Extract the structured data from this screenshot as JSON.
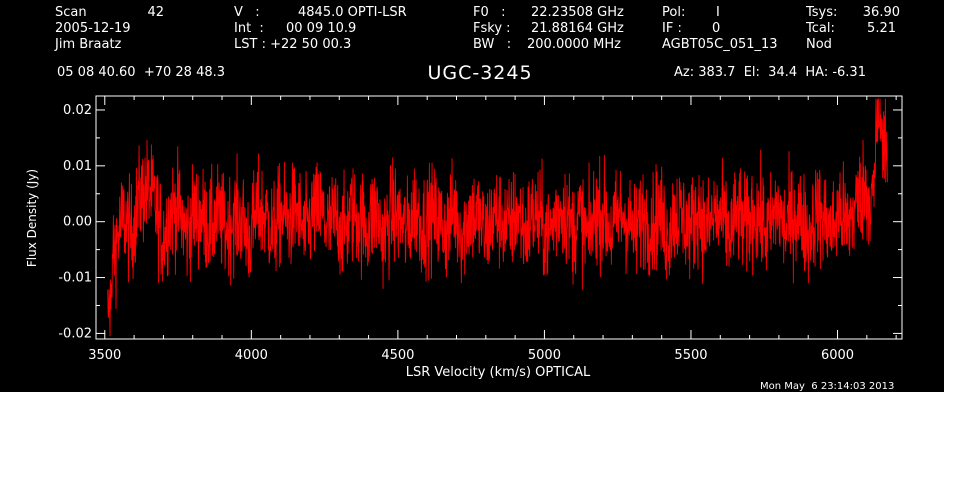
{
  "header": {
    "scan_label": "Scan",
    "scan_value": "42",
    "date": "2005-12-19",
    "observer": "Jim Braatz",
    "v_label": "V   :",
    "v_value": "4845.0 OPTI-LSR",
    "int_label": "Int  :",
    "int_value": "00 09 10.9",
    "lst_label": "LST : +22 50 00.3",
    "f0_label": "F0   :",
    "f0_value": "22.23508 GHz",
    "fsky_label": "Fsky :",
    "fsky_value": "21.88164 GHz",
    "bw_label": "BW   :",
    "bw_value": "200.0000 MHz",
    "pol_label": "Pol:",
    "pol_value": "I",
    "if_label": "IF :",
    "if_value": "0",
    "project": "AGBT05C_051_13",
    "tsys_label": "Tsys:",
    "tsys_value": "36.90",
    "tcal_label": "Tcal:",
    "tcal_value": "5.21",
    "mode": "Nod",
    "coords": "05 08 40.60  +70 28 48.3",
    "object": "UGC-3245",
    "az_el_ha": "Az: 383.7  El:  34.4  HA: -6.31"
  },
  "footer": {
    "timestamp": "Mon May  6 23:14:03 2013"
  },
  "colors": {
    "background": "#000000",
    "axes": "#ffffff",
    "trace": "#ff0000"
  },
  "chart_data": {
    "type": "line",
    "title": "UGC-3245",
    "xlabel": "LSR Velocity (km/s) OPTICAL",
    "ylabel": "Flux Density (Jy)",
    "xlim": [
      3470,
      6220
    ],
    "ylim": [
      -0.021,
      0.0225
    ],
    "xticks": [
      3500,
      4000,
      4500,
      5000,
      5500,
      6000
    ],
    "xtick_labels": [
      "3500",
      "4000",
      "4500",
      "5000",
      "5500",
      "6000"
    ],
    "yticks": [
      -0.02,
      -0.01,
      0.0,
      0.01,
      0.02
    ],
    "ytick_labels": [
      "-0.02",
      "-0.01",
      "0.00",
      "0.01",
      "0.02"
    ],
    "grid": false,
    "series": [
      {
        "color": "#ff0000",
        "x_range": [
          3510,
          6170
        ],
        "values": [
          -0.015,
          -0.01,
          0.002,
          -0.006,
          0.01,
          0.015,
          0.008,
          -0.008,
          0.005,
          0.006,
          -0.006,
          0.004,
          0.002,
          -0.003,
          0.003,
          -0.004,
          0.002,
          0.001,
          -0.008,
          0.005,
          0.003,
          -0.005,
          0.004,
          0.0,
          0.006,
          -0.007,
          0.003,
          0.005,
          -0.003,
          0.002,
          -0.005,
          0.004,
          0.001,
          -0.003,
          0.005,
          -0.007,
          0.003,
          0.002,
          -0.005,
          0.007,
          -0.002,
          0.003,
          0.0,
          -0.004,
          0.006,
          -0.006,
          0.004,
          0.002,
          -0.006,
          0.003,
          0.001,
          -0.003,
          0.005,
          -0.005,
          0.003,
          0.0,
          -0.007,
          0.004,
          0.006,
          -0.004,
          0.002,
          -0.008,
          0.005,
          0.003,
          -0.005,
          0.004,
          0.001,
          -0.006,
          0.003,
          -0.002,
          0.005,
          -0.007,
          0.004,
          0.002,
          -0.004,
          0.006,
          -0.005,
          0.003,
          0.001,
          -0.006,
          0.004,
          -0.003,
          0.005,
          0.0,
          -0.005,
          0.007,
          -0.004,
          0.003,
          0.002,
          -0.006,
          0.005,
          0.001,
          -0.004,
          0.006,
          -0.003,
          0.008,
          0.015,
          0.01,
          0.019,
          0.011
        ]
      }
    ]
  }
}
